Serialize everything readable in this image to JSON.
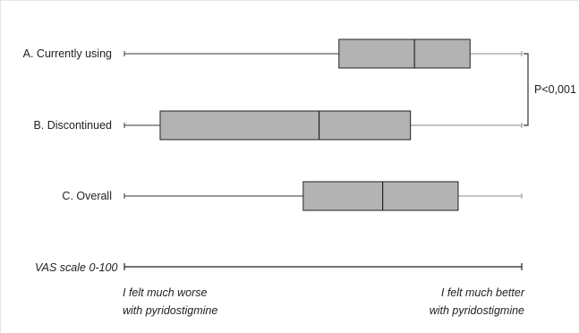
{
  "chart_data": {
    "type": "boxplot",
    "title": "",
    "scale_label": "VAS scale 0-100",
    "xlim": [
      0,
      100
    ],
    "axis_left_note": [
      "I felt much worse",
      "with pyridostigmine"
    ],
    "axis_right_note": [
      "I felt much better",
      "with pyridostigmine"
    ],
    "series": [
      {
        "name": "A. Currently using",
        "whisker_low": 0,
        "q1": 54,
        "median": 73,
        "q3": 87,
        "whisker_high": 100
      },
      {
        "name": "B. Discontinued",
        "whisker_low": 0,
        "q1": 9,
        "median": 49,
        "q3": 72,
        "whisker_high": 100
      },
      {
        "name": "C. Overall",
        "whisker_low": 0,
        "q1": 45,
        "median": 65,
        "q3": 84,
        "whisker_high": 100
      }
    ],
    "annotation": {
      "text": "P<0,001",
      "between": [
        "A. Currently using",
        "B. Discontinued"
      ]
    },
    "colors": {
      "box_fill": "#b3b3b3",
      "box_stroke": "#222222",
      "whisker": "#333333",
      "bracket": "#333333"
    }
  }
}
